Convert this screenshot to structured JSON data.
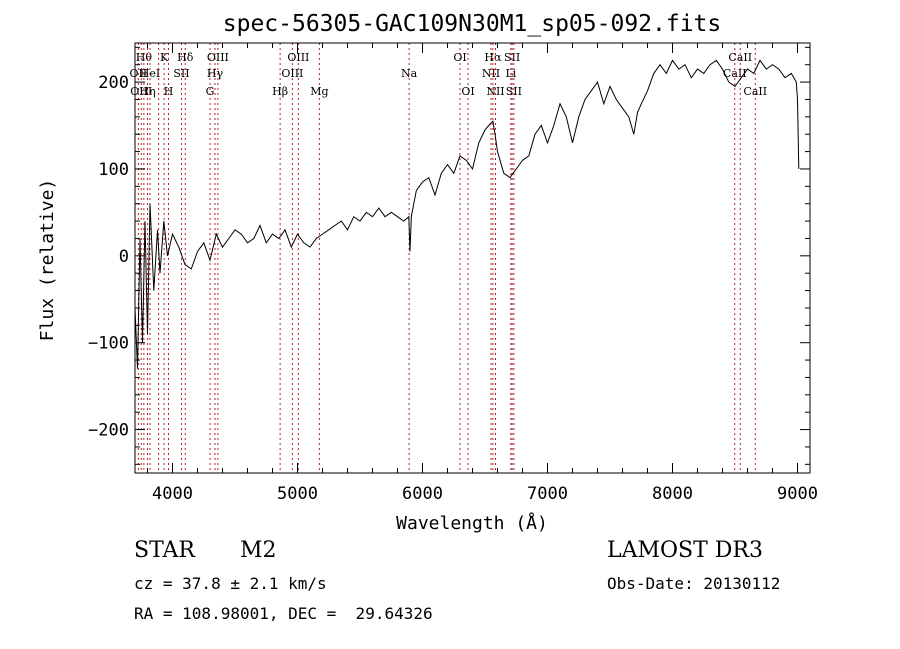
{
  "chart_data": {
    "type": "line",
    "title": "spec-56305-GAC109N30M1_sp05-092.fits",
    "xlabel": "Wavelength (Å)",
    "ylabel": "Flux (relative)",
    "xlim": [
      3700,
      9100
    ],
    "ylim": [
      -250,
      245
    ],
    "xticks": [
      4000,
      5000,
      6000,
      7000,
      8000,
      9000
    ],
    "yticks": [
      -200,
      -100,
      0,
      100,
      200
    ],
    "xtick_labels": [
      "4000",
      "5000",
      "6000",
      "7000",
      "8000",
      "9000"
    ],
    "ytick_labels": [
      "−200",
      "−100",
      "0",
      "100",
      "200"
    ],
    "grid": false,
    "series": [
      {
        "name": "flux",
        "x": [
          3700,
          3720,
          3740,
          3760,
          3780,
          3800,
          3820,
          3850,
          3880,
          3900,
          3930,
          3960,
          4000,
          4050,
          4100,
          4150,
          4200,
          4250,
          4300,
          4350,
          4400,
          4450,
          4500,
          4550,
          4600,
          4650,
          4700,
          4750,
          4800,
          4850,
          4900,
          4950,
          5000,
          5050,
          5100,
          5150,
          5200,
          5250,
          5300,
          5350,
          5400,
          5450,
          5500,
          5550,
          5600,
          5650,
          5700,
          5750,
          5800,
          5850,
          5890,
          5900,
          5910,
          5950,
          6000,
          6050,
          6100,
          6150,
          6200,
          6250,
          6300,
          6350,
          6400,
          6450,
          6500,
          6530,
          6563,
          6580,
          6600,
          6650,
          6700,
          6750,
          6800,
          6850,
          6900,
          6950,
          7000,
          7050,
          7100,
          7150,
          7200,
          7250,
          7300,
          7350,
          7400,
          7450,
          7500,
          7550,
          7600,
          7650,
          7690,
          7720,
          7750,
          7800,
          7850,
          7900,
          7950,
          8000,
          8050,
          8100,
          8150,
          8200,
          8250,
          8300,
          8350,
          8400,
          8450,
          8500,
          8550,
          8600,
          8650,
          8700,
          8750,
          8800,
          8850,
          8900,
          8950,
          8990,
          9000,
          9010
        ],
        "y": [
          -60,
          -130,
          20,
          -100,
          40,
          -90,
          60,
          -40,
          30,
          -20,
          40,
          0,
          25,
          10,
          -10,
          -15,
          5,
          15,
          -5,
          25,
          10,
          20,
          30,
          25,
          15,
          20,
          35,
          15,
          25,
          20,
          30,
          10,
          25,
          15,
          10,
          20,
          25,
          30,
          35,
          40,
          30,
          45,
          40,
          50,
          45,
          55,
          45,
          50,
          45,
          40,
          45,
          5,
          45,
          75,
          85,
          90,
          70,
          95,
          105,
          95,
          115,
          110,
          100,
          130,
          145,
          150,
          155,
          140,
          120,
          95,
          90,
          100,
          110,
          115,
          140,
          150,
          130,
          150,
          175,
          160,
          130,
          160,
          180,
          190,
          200,
          175,
          195,
          180,
          170,
          160,
          140,
          165,
          175,
          190,
          210,
          220,
          210,
          225,
          215,
          220,
          205,
          215,
          210,
          220,
          225,
          215,
          200,
          195,
          205,
          215,
          210,
          225,
          215,
          220,
          215,
          205,
          210,
          200,
          180,
          100
        ]
      }
    ],
    "line_markers": [
      {
        "wl": 3727,
        "label": "OII",
        "row": 2
      },
      {
        "wl": 3750,
        "label": "OIII",
        "row": 3
      },
      {
        "wl": 3771,
        "label": "Hθ",
        "row": 1
      },
      {
        "wl": 3800,
        "label": "Hη",
        "row": 3
      },
      {
        "wl": 3820,
        "label": "HeI",
        "row": 2
      },
      {
        "wl": 3889,
        "label": "",
        "row": 0
      },
      {
        "wl": 3933,
        "label": "K",
        "row": 1
      },
      {
        "wl": 3968,
        "label": "H",
        "row": 3
      },
      {
        "wl": 4072,
        "label": "SII",
        "row": 2
      },
      {
        "wl": 4102,
        "label": "Hδ",
        "row": 1
      },
      {
        "wl": 4300,
        "label": "G",
        "row": 3
      },
      {
        "wl": 4340,
        "label": "Hγ",
        "row": 2
      },
      {
        "wl": 4363,
        "label": "OIII",
        "row": 1
      },
      {
        "wl": 4861,
        "label": "Hβ",
        "row": 3
      },
      {
        "wl": 4959,
        "label": "OIII",
        "row": 2
      },
      {
        "wl": 5007,
        "label": "OIII",
        "row": 1
      },
      {
        "wl": 5175,
        "label": "Mg",
        "row": 3
      },
      {
        "wl": 5893,
        "label": "Na",
        "row": 2
      },
      {
        "wl": 6300,
        "label": "OI",
        "row": 1
      },
      {
        "wl": 6364,
        "label": "OI",
        "row": 3
      },
      {
        "wl": 6548,
        "label": "NII",
        "row": 2
      },
      {
        "wl": 6563,
        "label": "Hα",
        "row": 1
      },
      {
        "wl": 6584,
        "label": "NII",
        "row": 3
      },
      {
        "wl": 6707,
        "label": "Li",
        "row": 2
      },
      {
        "wl": 6717,
        "label": "SII",
        "row": 1
      },
      {
        "wl": 6731,
        "label": "SII",
        "row": 3
      },
      {
        "wl": 8498,
        "label": "CaII",
        "row": 2
      },
      {
        "wl": 8542,
        "label": "CaII",
        "row": 1
      },
      {
        "wl": 8662,
        "label": "CaII",
        "row": 3
      }
    ]
  },
  "info": {
    "class_label": "STAR",
    "subclass": "M2",
    "survey": "LAMOST DR3",
    "cz_text": "cz = 37.8 ± 2.1 km/s",
    "obs_date_text": "Obs-Date: 20130112",
    "radec_text": "RA = 108.98001, DEC =  29.64326"
  }
}
